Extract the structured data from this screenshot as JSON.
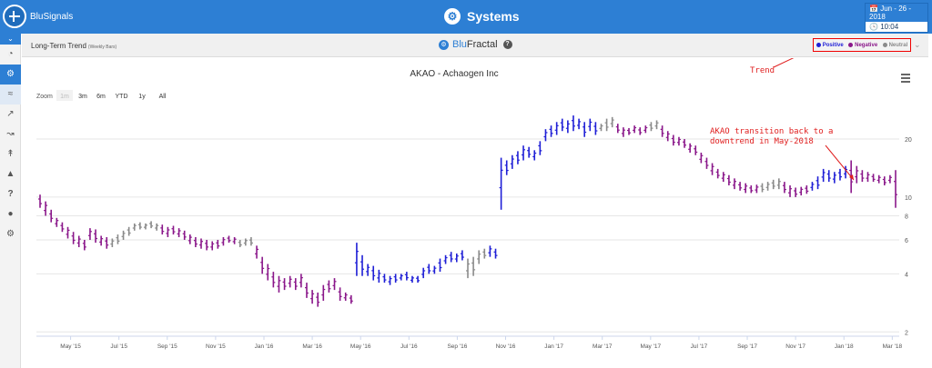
{
  "app": {
    "logo_text": "BluSignals",
    "title": "Systems",
    "date": "Jun - 26 - 2018",
    "time": "10:04"
  },
  "sidebar": {
    "items": [
      "dashboard-icon",
      "systems-icon",
      "chart-icon",
      "trend-icon",
      "signals-icon",
      "pattern-icon",
      "lab-icon",
      "help-icon",
      "user-icon",
      "settings-icon"
    ]
  },
  "subheader": {
    "label": "Long-Term Trend",
    "sublabel": "(Weekly Bars)",
    "fractal_blu": "Blu",
    "fractal_rest": "Fractal",
    "help": "?"
  },
  "legend": [
    {
      "label": "Positive",
      "color": "#1f1fd6"
    },
    {
      "label": "Negative",
      "color": "#8a178a"
    },
    {
      "label": "Neutral",
      "color": "#8a8a8a"
    }
  ],
  "annotations": {
    "trend_label": "Trend",
    "transition_text_line1": "AKAO transition back to a",
    "transition_text_line2": "downtrend in May-2018"
  },
  "chart_data": {
    "type": "bar",
    "title": "AKAO - Achaogen Inc",
    "zoom_label": "Zoom",
    "zoom_options": [
      "1m",
      "3m",
      "6m",
      "YTD",
      "1y",
      "All"
    ],
    "x_ticks": [
      "May '15",
      "Jul '15",
      "Sep '15",
      "Nov '15",
      "Jan '16",
      "Mar '16",
      "May '16",
      "Jul '16",
      "Sep '16",
      "Nov '16",
      "Jan '17",
      "Mar '17",
      "May '17",
      "Jul '17",
      "Sep '17",
      "Nov '17",
      "Jan '18",
      "Mar '18",
      "May '18"
    ],
    "y_scale": "log",
    "y_ticks": [
      2,
      4,
      6,
      8,
      10,
      20
    ],
    "ylim": [
      1.9,
      28
    ],
    "colors": {
      "positive": "#1f1fd6",
      "negative": "#8a178a",
      "neutral": "#8a8a8a"
    },
    "start_date": "2015-03-23",
    "bars": [
      [
        10.3,
        8.8,
        "n"
      ],
      [
        9.5,
        8.0,
        "n"
      ],
      [
        8.6,
        7.4,
        "n"
      ],
      [
        7.8,
        7.0,
        "n"
      ],
      [
        7.4,
        6.6,
        "n"
      ],
      [
        7.0,
        6.1,
        "n"
      ],
      [
        6.6,
        5.7,
        "n"
      ],
      [
        6.3,
        5.5,
        "n"
      ],
      [
        6.0,
        5.3,
        "n"
      ],
      [
        6.9,
        6.0,
        "n"
      ],
      [
        6.8,
        5.8,
        "n"
      ],
      [
        6.3,
        5.6,
        "n"
      ],
      [
        6.2,
        5.4,
        "n"
      ],
      [
        6.1,
        5.5,
        "g"
      ],
      [
        6.4,
        5.7,
        "g"
      ],
      [
        6.7,
        6.0,
        "g"
      ],
      [
        7.0,
        6.3,
        "g"
      ],
      [
        7.3,
        6.7,
        "g"
      ],
      [
        7.4,
        6.8,
        "g"
      ],
      [
        7.3,
        6.8,
        "g"
      ],
      [
        7.5,
        6.9,
        "g"
      ],
      [
        7.3,
        6.7,
        "g"
      ],
      [
        7.2,
        6.4,
        "n"
      ],
      [
        7.0,
        6.2,
        "n"
      ],
      [
        7.1,
        6.4,
        "n"
      ],
      [
        6.9,
        6.2,
        "n"
      ],
      [
        6.7,
        6.0,
        "n"
      ],
      [
        6.4,
        5.7,
        "n"
      ],
      [
        6.2,
        5.5,
        "n"
      ],
      [
        6.1,
        5.4,
        "n"
      ],
      [
        6.0,
        5.3,
        "n"
      ],
      [
        5.9,
        5.3,
        "n"
      ],
      [
        6.0,
        5.4,
        "n"
      ],
      [
        6.2,
        5.6,
        "n"
      ],
      [
        6.3,
        5.8,
        "n"
      ],
      [
        6.2,
        5.7,
        "n"
      ],
      [
        6.0,
        5.5,
        "g"
      ],
      [
        6.1,
        5.6,
        "g"
      ],
      [
        6.2,
        5.6,
        "g"
      ],
      [
        5.6,
        4.8,
        "n"
      ],
      [
        4.9,
        4.0,
        "n"
      ],
      [
        4.5,
        3.7,
        "n"
      ],
      [
        4.1,
        3.4,
        "n"
      ],
      [
        3.9,
        3.2,
        "n"
      ],
      [
        3.8,
        3.3,
        "n"
      ],
      [
        3.9,
        3.4,
        "n"
      ],
      [
        3.8,
        3.3,
        "n"
      ],
      [
        4.0,
        3.4,
        "n"
      ],
      [
        3.6,
        3.0,
        "n"
      ],
      [
        3.3,
        2.8,
        "n"
      ],
      [
        3.2,
        2.7,
        "n"
      ],
      [
        3.5,
        2.9,
        "n"
      ],
      [
        3.7,
        3.2,
        "n"
      ],
      [
        3.8,
        3.3,
        "n"
      ],
      [
        3.4,
        2.9,
        "n"
      ],
      [
        3.2,
        2.9,
        "n"
      ],
      [
        3.1,
        2.8,
        "n"
      ],
      [
        5.8,
        3.9,
        "p"
      ],
      [
        5.0,
        3.9,
        "p"
      ],
      [
        4.5,
        3.9,
        "p"
      ],
      [
        4.4,
        3.7,
        "p"
      ],
      [
        4.2,
        3.6,
        "p"
      ],
      [
        4.0,
        3.6,
        "p"
      ],
      [
        3.9,
        3.5,
        "p"
      ],
      [
        4.0,
        3.6,
        "p"
      ],
      [
        4.0,
        3.7,
        "p"
      ],
      [
        4.1,
        3.7,
        "p"
      ],
      [
        3.9,
        3.6,
        "p"
      ],
      [
        3.9,
        3.6,
        "p"
      ],
      [
        4.3,
        3.8,
        "p"
      ],
      [
        4.5,
        4.0,
        "p"
      ],
      [
        4.4,
        4.0,
        "p"
      ],
      [
        4.8,
        4.1,
        "p"
      ],
      [
        5.0,
        4.5,
        "p"
      ],
      [
        5.2,
        4.6,
        "p"
      ],
      [
        5.1,
        4.6,
        "p"
      ],
      [
        5.3,
        4.7,
        "p"
      ],
      [
        4.8,
        3.8,
        "g"
      ],
      [
        4.9,
        3.9,
        "g"
      ],
      [
        5.3,
        4.5,
        "g"
      ],
      [
        5.4,
        4.8,
        "g"
      ],
      [
        5.6,
        4.9,
        "p"
      ],
      [
        5.4,
        4.8,
        "p"
      ],
      [
        16.0,
        8.6,
        "p"
      ],
      [
        15.5,
        13.0,
        "p"
      ],
      [
        16.5,
        14.0,
        "p"
      ],
      [
        17.3,
        14.8,
        "p"
      ],
      [
        18.5,
        15.5,
        "p"
      ],
      [
        18.2,
        16.0,
        "p"
      ],
      [
        17.5,
        15.5,
        "p"
      ],
      [
        19.5,
        16.5,
        "p"
      ],
      [
        22.5,
        19.5,
        "p"
      ],
      [
        23.5,
        20.5,
        "p"
      ],
      [
        24.5,
        21.0,
        "p"
      ],
      [
        25.5,
        22.0,
        "p"
      ],
      [
        25.0,
        21.5,
        "p"
      ],
      [
        26.5,
        22.0,
        "p"
      ],
      [
        25.5,
        22.5,
        "p"
      ],
      [
        24.5,
        20.5,
        "p"
      ],
      [
        25.5,
        22.0,
        "p"
      ],
      [
        24.5,
        21.0,
        "p"
      ],
      [
        24.0,
        22.0,
        "g"
      ],
      [
        25.5,
        22.0,
        "g"
      ],
      [
        26.0,
        23.0,
        "g"
      ],
      [
        24.0,
        21.5,
        "n"
      ],
      [
        23.0,
        20.5,
        "n"
      ],
      [
        22.8,
        21.0,
        "n"
      ],
      [
        23.5,
        21.5,
        "n"
      ],
      [
        23.0,
        21.0,
        "n"
      ],
      [
        23.5,
        21.5,
        "n"
      ],
      [
        24.5,
        22.0,
        "g"
      ],
      [
        25.0,
        22.5,
        "g"
      ],
      [
        23.5,
        20.5,
        "n"
      ],
      [
        22.0,
        19.5,
        "n"
      ],
      [
        21.0,
        18.5,
        "n"
      ],
      [
        20.5,
        18.5,
        "n"
      ],
      [
        20.0,
        18.0,
        "n"
      ],
      [
        19.0,
        17.0,
        "n"
      ],
      [
        18.5,
        16.5,
        "n"
      ],
      [
        17.0,
        15.0,
        "n"
      ],
      [
        16.0,
        14.0,
        "n"
      ],
      [
        15.0,
        13.0,
        "n"
      ],
      [
        14.0,
        12.5,
        "n"
      ],
      [
        13.5,
        12.0,
        "n"
      ],
      [
        13.0,
        11.5,
        "n"
      ],
      [
        12.5,
        11.0,
        "n"
      ],
      [
        12.0,
        10.8,
        "n"
      ],
      [
        11.8,
        10.5,
        "n"
      ],
      [
        11.5,
        10.5,
        "n"
      ],
      [
        11.6,
        10.5,
        "n"
      ],
      [
        11.8,
        10.6,
        "g"
      ],
      [
        12.0,
        10.8,
        "g"
      ],
      [
        12.3,
        11.0,
        "g"
      ],
      [
        12.5,
        11.0,
        "g"
      ],
      [
        12.0,
        10.5,
        "n"
      ],
      [
        11.5,
        10.0,
        "n"
      ],
      [
        11.2,
        10.0,
        "n"
      ],
      [
        11.3,
        10.2,
        "n"
      ],
      [
        11.5,
        10.4,
        "n"
      ],
      [
        12.0,
        10.8,
        "p"
      ],
      [
        12.8,
        11.0,
        "p"
      ],
      [
        14.0,
        12.0,
        "p"
      ],
      [
        13.8,
        12.0,
        "p"
      ],
      [
        13.5,
        11.8,
        "p"
      ],
      [
        14.0,
        12.2,
        "p"
      ],
      [
        14.5,
        12.5,
        "p"
      ],
      [
        15.5,
        10.5,
        "n"
      ],
      [
        14.5,
        11.8,
        "n"
      ],
      [
        13.8,
        12.0,
        "n"
      ],
      [
        13.5,
        12.0,
        "n"
      ],
      [
        13.2,
        12.0,
        "n"
      ],
      [
        13.0,
        11.8,
        "n"
      ],
      [
        12.8,
        11.5,
        "n"
      ],
      [
        13.0,
        11.8,
        "n"
      ],
      [
        13.8,
        8.8,
        "n"
      ]
    ]
  }
}
